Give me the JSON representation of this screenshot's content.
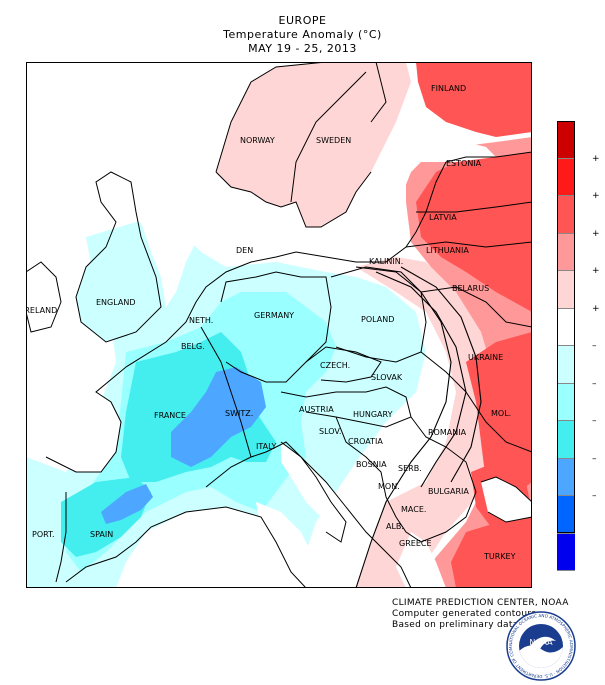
{
  "header": {
    "region": "EUROPE",
    "title": "Temperature Anomaly (",
    "unit": "°C",
    "title_close": ")",
    "dates": "MAY 19 - 25, 2013"
  },
  "countries": [
    {
      "key": "finland",
      "label": "FINLAND"
    },
    {
      "key": "norway",
      "label": "NORWAY"
    },
    {
      "key": "sweden",
      "label": "SWEDEN"
    },
    {
      "key": "estonia",
      "label": "ESTONIA"
    },
    {
      "key": "latvia",
      "label": "LATVIA"
    },
    {
      "key": "lithuania",
      "label": "LITHUANIA"
    },
    {
      "key": "denmark",
      "label": "DEN"
    },
    {
      "key": "kalinin",
      "label": "KALININ."
    },
    {
      "key": "belarus",
      "label": "BELARUS"
    },
    {
      "key": "england",
      "label": "ENGLAND"
    },
    {
      "key": "ireland",
      "label": "IRELAND"
    },
    {
      "key": "netherlands",
      "label": "NETH."
    },
    {
      "key": "germany",
      "label": "GERMANY"
    },
    {
      "key": "poland",
      "label": "POLAND"
    },
    {
      "key": "belgium",
      "label": "BELG."
    },
    {
      "key": "czech",
      "label": "CZECH."
    },
    {
      "key": "slovakia",
      "label": "SLOVAK"
    },
    {
      "key": "ukraine",
      "label": "UKRAINE"
    },
    {
      "key": "france",
      "label": "FRANCE"
    },
    {
      "key": "switzerland",
      "label": "SWITZ."
    },
    {
      "key": "austria",
      "label": "AUSTRIA"
    },
    {
      "key": "hungary",
      "label": "HUNGARY"
    },
    {
      "key": "moldova",
      "label": "MOL."
    },
    {
      "key": "slovenia",
      "label": "SLOV."
    },
    {
      "key": "croatia",
      "label": "CROATIA"
    },
    {
      "key": "romania",
      "label": "ROMANIA"
    },
    {
      "key": "italy",
      "label": "ITALY"
    },
    {
      "key": "bosnia",
      "label": "BOSNIA"
    },
    {
      "key": "serbia",
      "label": "SERB."
    },
    {
      "key": "montenegro",
      "label": "MON."
    },
    {
      "key": "bulgaria",
      "label": "BULGARIA"
    },
    {
      "key": "macedonia",
      "label": "MACE."
    },
    {
      "key": "albania",
      "label": "ALB."
    },
    {
      "key": "portugal",
      "label": "PORT."
    },
    {
      "key": "spain",
      "label": "SPAIN"
    },
    {
      "key": "greece",
      "label": "GREECE"
    },
    {
      "key": "turkey",
      "label": "TURKEY"
    }
  ],
  "legend": {
    "colors": [
      "#cc0000",
      "#ff1a1a",
      "#ff5555",
      "#ff9999",
      "#ffd6d6",
      "#ffffff",
      "#ccffff",
      "#99ffff",
      "#44eeee",
      "#4da6ff",
      "#0066ff",
      "#0000ee"
    ],
    "ticks": [
      {
        "label": "+"
      },
      {
        "label": "+"
      },
      {
        "label": "+"
      },
      {
        "label": "+"
      },
      {
        "label": "+"
      },
      {
        "label": "–"
      },
      {
        "label": "–"
      },
      {
        "label": "–"
      },
      {
        "label": "–"
      },
      {
        "label": "–"
      }
    ]
  },
  "map_colors": {
    "water": "#ffffff",
    "pale_cyan": "#ccffff",
    "cyan": "#99ffff",
    "bright_cyan": "#44eeee",
    "blue": "#4da6ff",
    "pink": "#ffd6d6",
    "light_red": "#ff9999",
    "red": "#ff5555"
  },
  "credits": {
    "line1": "CLIMATE PREDICTION CENTER, NOAA",
    "line2": "Computer generated contours",
    "line3": "Based on preliminary data"
  },
  "logo": {
    "text": "NOAA",
    "ring_text": "NATIONAL OCEANIC AND ATMOSPHERIC ADMINISTRATION · U.S. DEPARTMENT OF COMMERCE"
  }
}
